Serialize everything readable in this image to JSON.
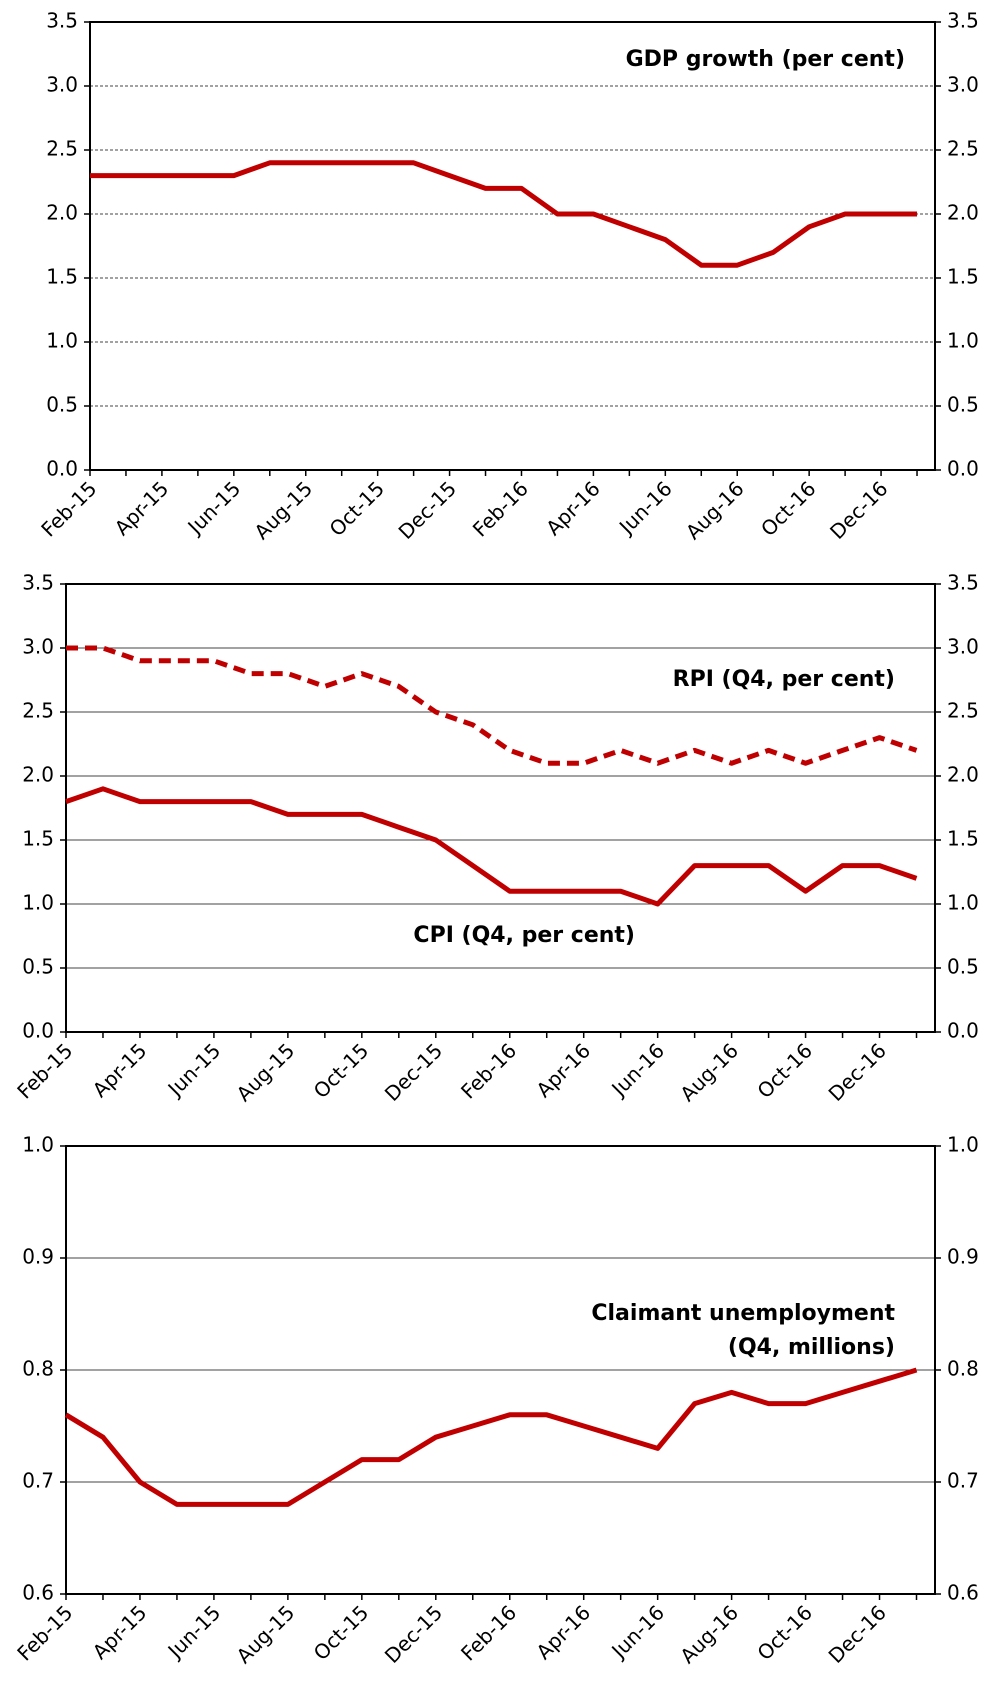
{
  "chart_data": [
    {
      "type": "line",
      "title": "GDP growth (per cent)",
      "categories": [
        "Feb-15",
        null,
        "Apr-15",
        null,
        "Jun-15",
        null,
        "Aug-15",
        null,
        "Oct-15",
        null,
        "Dec-15",
        null,
        "Feb-16",
        null,
        "Apr-16",
        null,
        "Jun-16",
        null,
        "Aug-16",
        null,
        "Oct-16",
        null,
        "Dec-16",
        null
      ],
      "series": [
        {
          "name": null,
          "color": "#c00000",
          "dash": false,
          "values": [
            2.3,
            2.3,
            2.3,
            2.3,
            2.3,
            2.4,
            2.4,
            2.4,
            2.4,
            2.4,
            2.3,
            2.2,
            2.2,
            2.0,
            2.0,
            1.9,
            1.8,
            1.6,
            1.6,
            1.7,
            1.9,
            2.0,
            2.0,
            2.0
          ]
        }
      ],
      "ylim": [
        0,
        3.5
      ],
      "yticks": [
        {
          "value": 0,
          "label": "0.0"
        },
        0.5,
        {
          "value": 1,
          "label": "1.0"
        },
        1.5,
        {
          "value": 2,
          "label": "2.0"
        },
        2.5,
        {
          "value": 3,
          "label": "3.0"
        },
        3.5
      ],
      "grid": true,
      "grid_style": "dashed"
    },
    {
      "type": "line",
      "categories": [
        "Feb-15",
        null,
        "Apr-15",
        null,
        "Jun-15",
        null,
        "Aug-15",
        null,
        "Oct-15",
        null,
        "Dec-15",
        null,
        "Feb-16",
        null,
        "Apr-16",
        null,
        "Jun-16",
        null,
        "Aug-16",
        null,
        "Oct-16",
        null,
        "Dec-16",
        null
      ],
      "series": [
        {
          "name": "RPI (Q4, per cent)",
          "color": "#c00000",
          "dash": true,
          "values": [
            3.0,
            3.0,
            2.9,
            2.9,
            2.9,
            2.8,
            2.8,
            2.7,
            2.8,
            2.7,
            2.5,
            2.4,
            2.2,
            2.1,
            2.1,
            2.2,
            2.1,
            2.2,
            2.1,
            2.2,
            2.1,
            2.2,
            2.3,
            2.2
          ]
        },
        {
          "name": "CPI (Q4, per cent)",
          "color": "#c00000",
          "dash": false,
          "values": [
            1.8,
            1.9,
            1.8,
            1.8,
            1.8,
            1.8,
            1.7,
            1.7,
            1.7,
            1.6,
            1.5,
            1.3,
            1.1,
            1.1,
            1.1,
            1.1,
            1.0,
            1.3,
            1.3,
            1.3,
            1.1,
            1.3,
            1.3,
            1.2
          ]
        }
      ],
      "ylim": [
        0,
        3.5
      ],
      "yticks": [
        {
          "value": 0,
          "label": "0.0"
        },
        0.5,
        {
          "value": 1,
          "label": "1.0"
        },
        1.5,
        {
          "value": 2,
          "label": "2.0"
        },
        2.5,
        {
          "value": 3,
          "label": "3.0"
        },
        3.5
      ],
      "grid": true,
      "grid_style": "solid"
    },
    {
      "type": "line",
      "title_lines": [
        "Claimant unemployment",
        "(Q4, millions)"
      ],
      "categories": [
        "Feb-15",
        null,
        "Apr-15",
        null,
        "Jun-15",
        null,
        "Aug-15",
        null,
        "Oct-15",
        null,
        "Dec-15",
        null,
        "Feb-16",
        null,
        "Apr-16",
        null,
        "Jun-16",
        null,
        "Aug-16",
        null,
        "Oct-16",
        null,
        "Dec-16",
        null
      ],
      "series": [
        {
          "name": null,
          "color": "#c00000",
          "dash": false,
          "values": [
            0.76,
            0.74,
            0.7,
            0.68,
            0.68,
            0.68,
            0.68,
            0.7,
            0.72,
            0.72,
            0.74,
            0.75,
            0.76,
            0.76,
            0.75,
            0.74,
            0.73,
            0.77,
            0.78,
            0.77,
            0.77,
            0.78,
            0.79,
            0.8
          ]
        }
      ],
      "ylim": [
        0.6,
        1.0
      ],
      "yticks": [
        0.6,
        0.7,
        0.8,
        0.9,
        {
          "value": 1,
          "label": "1.0"
        }
      ],
      "grid": true,
      "grid_style": "solid"
    }
  ]
}
